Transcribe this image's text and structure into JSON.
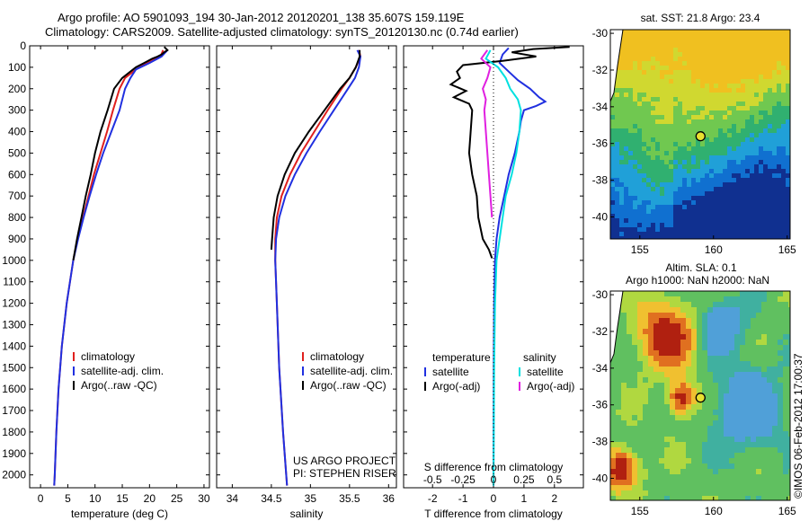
{
  "header": {
    "line1": "Argo profile: AO 5901093_194 30-Jan-2012 20120201_138 35.607S 159.119E",
    "line2": "Climatology: CARS2009. Satellite-adjusted climatology: synTS_20120130.nc (0.74d earlier)"
  },
  "colors": {
    "climatology": "#e0201e",
    "satellite": "#2030e0",
    "argo": "#000000",
    "sal_satellite": "#00e0e0",
    "sal_argo": "#e020e0"
  },
  "chart_data": [
    {
      "type": "line",
      "id": "temperature",
      "xlabel": "temperature (deg C)",
      "xlim": [
        -2,
        31
      ],
      "xticks": [
        0,
        5,
        10,
        15,
        20,
        25,
        30
      ],
      "ylim": [
        0,
        2060
      ],
      "yticks": [
        0,
        100,
        200,
        300,
        400,
        500,
        600,
        700,
        800,
        900,
        1000,
        1100,
        1200,
        1300,
        1400,
        1500,
        1600,
        1700,
        1800,
        1900,
        2000
      ],
      "legend": [
        "climatology",
        "satellite-adj. clim.",
        "Argo(..raw -QC)"
      ],
      "series": [
        {
          "name": "climatology",
          "color": "#e0201e",
          "depth": [
            20,
            50,
            80,
            110,
            150,
            200,
            300,
            400,
            500,
            600,
            700,
            800,
            900,
            1000,
            1200,
            1400,
            1600,
            1800,
            2000,
            2050
          ],
          "values": [
            22.5,
            22.0,
            19.5,
            17.5,
            15.5,
            14.5,
            13.3,
            12.2,
            11.0,
            9.8,
            8.8,
            7.8,
            6.8,
            6.0,
            4.8,
            3.9,
            3.3,
            2.9,
            2.6,
            2.5
          ]
        },
        {
          "name": "satellite-adj. clim.",
          "color": "#2030e0",
          "depth": [
            20,
            50,
            80,
            110,
            150,
            200,
            300,
            400,
            500,
            600,
            700,
            800,
            900,
            1000,
            1200,
            1400,
            1600,
            1800,
            2000,
            2050
          ],
          "values": [
            23.3,
            22.2,
            20.0,
            17.5,
            16.5,
            15.5,
            14.5,
            13.0,
            11.5,
            10.2,
            9.0,
            7.9,
            6.9,
            6.0,
            4.8,
            3.9,
            3.3,
            2.9,
            2.6,
            2.5
          ]
        },
        {
          "name": "Argo(..raw -QC)",
          "color": "#000000",
          "depth": [
            5,
            20,
            30,
            40,
            50,
            60,
            80,
            100,
            150,
            200,
            300,
            400,
            500,
            600,
            700,
            800,
            900,
            1000
          ],
          "values": [
            22.7,
            23.3,
            22.7,
            22.2,
            21.5,
            20.5,
            19.0,
            17.5,
            15.0,
            13.5,
            12.3,
            11.0,
            10.0,
            9.2,
            8.3,
            7.5,
            6.7,
            6.0
          ]
        }
      ]
    },
    {
      "type": "line",
      "id": "salinity",
      "xlabel": "salinity",
      "xlim": [
        33.8,
        36.1
      ],
      "xticks": [
        34,
        34.5,
        35,
        35.5,
        36
      ],
      "ylim": [
        0,
        2060
      ],
      "legend": [
        "climatology",
        "satellite-adj. clim.",
        "Argo(..raw -QC)"
      ],
      "annotation": [
        "US ARGO PROJECT",
        "PI: STEPHEN RISER"
      ],
      "series": [
        {
          "name": "climatology",
          "color": "#e0201e",
          "depth": [
            20,
            50,
            100,
            150,
            200,
            300,
            400,
            500,
            600,
            700,
            800,
            900,
            1000,
            1200,
            1500,
            1800,
            2050
          ],
          "values": [
            35.62,
            35.64,
            35.58,
            35.5,
            35.4,
            35.22,
            35.05,
            34.88,
            34.74,
            34.63,
            34.57,
            34.55,
            34.55,
            34.57,
            34.6,
            34.65,
            34.7
          ]
        },
        {
          "name": "satellite-adj. clim.",
          "color": "#2030e0",
          "depth": [
            20,
            50,
            100,
            150,
            200,
            300,
            400,
            500,
            600,
            700,
            800,
            900,
            1000,
            1200,
            1500,
            1800,
            2050
          ],
          "values": [
            35.6,
            35.64,
            35.62,
            35.57,
            35.48,
            35.3,
            35.12,
            34.95,
            34.8,
            34.68,
            34.6,
            34.56,
            34.55,
            34.57,
            34.6,
            34.65,
            34.7
          ]
        },
        {
          "name": "Argo(..raw -QC)",
          "color": "#000000",
          "depth": [
            20,
            50,
            100,
            150,
            200,
            300,
            400,
            500,
            600,
            700,
            800,
            900,
            950
          ],
          "values": [
            35.63,
            35.63,
            35.58,
            35.5,
            35.38,
            35.18,
            34.98,
            34.8,
            34.67,
            34.58,
            34.53,
            34.51,
            34.5
          ]
        }
      ]
    },
    {
      "type": "line",
      "id": "difference",
      "xlabel": "T difference from climatology",
      "xlabel_top": "S difference from climatology",
      "xlim": [
        -2.95,
        2.95
      ],
      "xticks": [
        -2,
        -1,
        0,
        1,
        2
      ],
      "xticks_top": [
        "-0.5",
        "-0.25",
        "0",
        "0.25",
        "0.5"
      ],
      "xticks_top_pos": [
        -2,
        -1,
        0,
        1,
        2
      ],
      "ylim": [
        0,
        2060
      ],
      "legend_temperature": [
        "temperature",
        "satellite",
        "Argo(-adj)"
      ],
      "legend_salinity": [
        "salinity",
        "satellite",
        "Argo(-adj)"
      ],
      "series": [
        {
          "name": "T satellite",
          "color": "#2030e0",
          "depth": [
            10,
            40,
            80,
            120,
            160,
            200,
            240,
            260,
            280,
            300,
            350,
            400,
            500,
            600,
            700,
            800,
            900,
            1000,
            1200,
            1500,
            2050
          ],
          "values": [
            0.5,
            0.3,
            0.2,
            0.5,
            0.8,
            1.2,
            1.5,
            1.7,
            1.4,
            1.0,
            0.9,
            0.85,
            0.7,
            0.5,
            0.35,
            0.2,
            0.1,
            0.05,
            0.02,
            0.01,
            0.0
          ]
        },
        {
          "name": "T Argo",
          "color": "#000000",
          "depth": [
            5,
            15,
            30,
            50,
            70,
            90,
            120,
            150,
            180,
            210,
            240,
            270,
            300,
            400,
            500,
            600,
            700,
            800,
            900,
            950,
            990
          ],
          "values": [
            2.5,
            1.3,
            0.6,
            1.4,
            0.3,
            -1.0,
            -1.2,
            -1.1,
            -1.4,
            -0.9,
            -1.3,
            -0.8,
            -0.7,
            -0.75,
            -0.8,
            -0.7,
            -0.55,
            -0.5,
            -0.35,
            -0.15,
            -0.05
          ]
        },
        {
          "name": "S satellite",
          "color": "#00e0e0",
          "depth": [
            20,
            60,
            100,
            150,
            200,
            250,
            300,
            400,
            500,
            600,
            700,
            800,
            900,
            1000,
            1200,
            1500,
            2050
          ],
          "values": [
            -0.1,
            -0.25,
            0.15,
            0.4,
            0.55,
            0.8,
            0.9,
            0.85,
            0.75,
            0.6,
            0.4,
            0.3,
            0.2,
            0.1,
            0.05,
            0.02,
            0.0
          ]
        },
        {
          "name": "S Argo",
          "color": "#e020e0",
          "depth": [
            20,
            60,
            100,
            150,
            200,
            250,
            300,
            400,
            500,
            600,
            700,
            800
          ],
          "values": [
            -0.2,
            -0.4,
            -0.1,
            -0.2,
            -0.35,
            -0.25,
            -0.3,
            -0.25,
            -0.2,
            -0.15,
            -0.1,
            -0.05
          ]
        }
      ]
    },
    {
      "type": "heatmap",
      "id": "sst_map",
      "title": "sat. SST: 21.8  Argo: 23.4",
      "xlim": [
        153,
        165.2
      ],
      "xticks": [
        155,
        160,
        165
      ],
      "ylim": [
        -41.2,
        -29.8
      ],
      "yticks": [
        -30,
        -32,
        -34,
        -36,
        -38,
        -40
      ],
      "argo_position": [
        159.119,
        -35.607
      ]
    },
    {
      "type": "heatmap",
      "id": "sla_map",
      "title": "Altim. SLA: 0.1",
      "subtitle": "Argo h1000: NaN h2000: NaN",
      "xlim": [
        153,
        165.2
      ],
      "xticks": [
        155,
        160,
        165
      ],
      "ylim": [
        -41.2,
        -29.8
      ],
      "yticks": [
        -30,
        -32,
        -34,
        -36,
        -38,
        -40
      ],
      "argo_position": [
        159.119,
        -35.607
      ]
    }
  ],
  "credit": "©IMOS 06-Feb-2012 17:00:37"
}
